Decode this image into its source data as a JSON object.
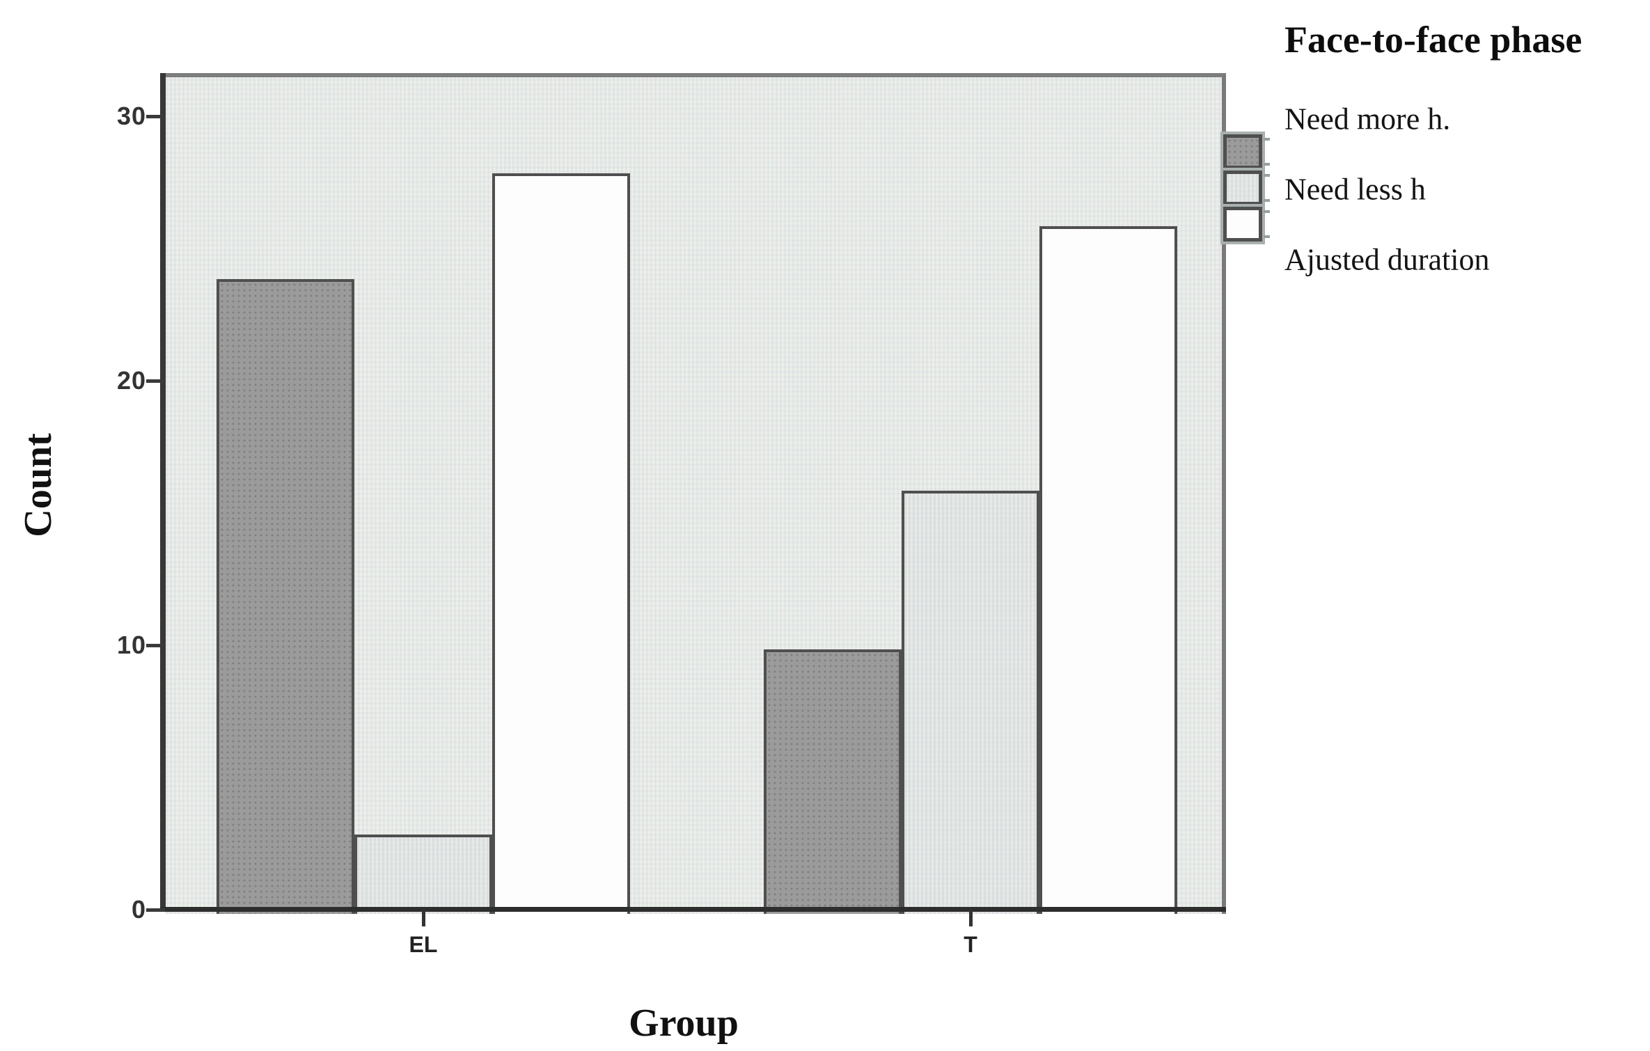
{
  "chart_data": {
    "type": "bar",
    "categories": [
      "EL",
      "T"
    ],
    "series": [
      {
        "name": "Need more h.",
        "values": [
          24,
          10
        ],
        "fill": "#9b9b9b",
        "texture": "dots"
      },
      {
        "name": "Need less h",
        "values": [
          3,
          16
        ],
        "fill": "#e8eae6",
        "texture": "speckle"
      },
      {
        "name": "Ajusted duration",
        "values": [
          28,
          26
        ],
        "fill": "#fdfdfd",
        "texture": "plain"
      }
    ],
    "xlabel": "Group",
    "ylabel": "Count",
    "yticks": [
      0,
      10,
      20,
      30
    ],
    "ylim": [
      0,
      31.6
    ],
    "legend_title": "Face-to-face phase",
    "legend_position": "top-right",
    "grid": false,
    "colors": {
      "plot_background": "#edefeb",
      "bar_border": "#4f4f4f",
      "axis_line": "#2d2d2d",
      "frame_line": "#7d7d7d",
      "tick_text": "#333333",
      "text": "#111111"
    }
  }
}
